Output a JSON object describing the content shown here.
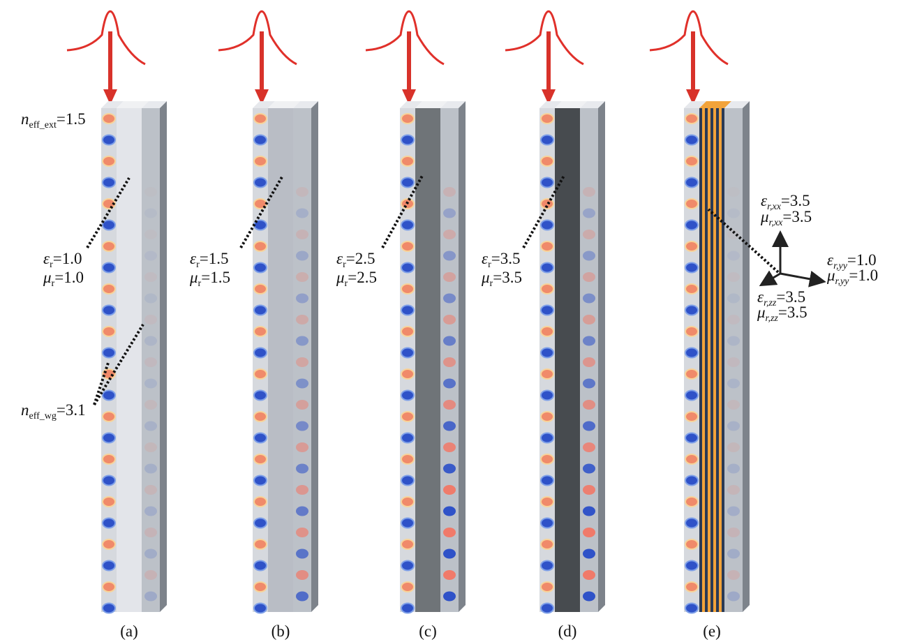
{
  "panels": [
    {
      "label": "(a)",
      "annotations": [
        {
          "symbol": "n",
          "subscript": "eff_ext",
          "value": "=1.5"
        },
        {
          "symbol": "ε",
          "subscript": "r",
          "value": "=1.0"
        },
        {
          "symbol": "μ",
          "subscript": "r",
          "value": "=1.0"
        },
        {
          "symbol": "n",
          "subscript": "eff_wg",
          "value": "=3.1"
        }
      ]
    },
    {
      "label": "(b)",
      "annotations": [
        {
          "symbol": "ε",
          "subscript": "r",
          "value": "=1.5"
        },
        {
          "symbol": "μ",
          "subscript": "r",
          "value": "=1.5"
        }
      ]
    },
    {
      "label": "(c)",
      "annotations": [
        {
          "symbol": "ε",
          "subscript": "r",
          "value": "=2.5"
        },
        {
          "symbol": "μ",
          "subscript": "r",
          "value": "=2.5"
        }
      ]
    },
    {
      "label": "(d)",
      "annotations": [
        {
          "symbol": "ε",
          "subscript": "r",
          "value": "=3.5"
        },
        {
          "symbol": "μ",
          "subscript": "r",
          "value": "=3.5"
        }
      ]
    },
    {
      "label": "(e)",
      "annotations": [
        {
          "symbol": "ε",
          "subscript": "r,xx",
          "value": "=3.5"
        },
        {
          "symbol": "μ",
          "subscript": "r,xx",
          "value": "=3.5"
        },
        {
          "symbol": "ε",
          "subscript": "r,yy",
          "value": "=1.0"
        },
        {
          "symbol": "μ",
          "subscript": "r,yy",
          "value": "=1.0"
        },
        {
          "symbol": "ε",
          "subscript": "r,zz",
          "value": "=3.5"
        },
        {
          "symbol": "μ",
          "subscript": "r,zz",
          "value": "=3.5"
        }
      ]
    }
  ]
}
